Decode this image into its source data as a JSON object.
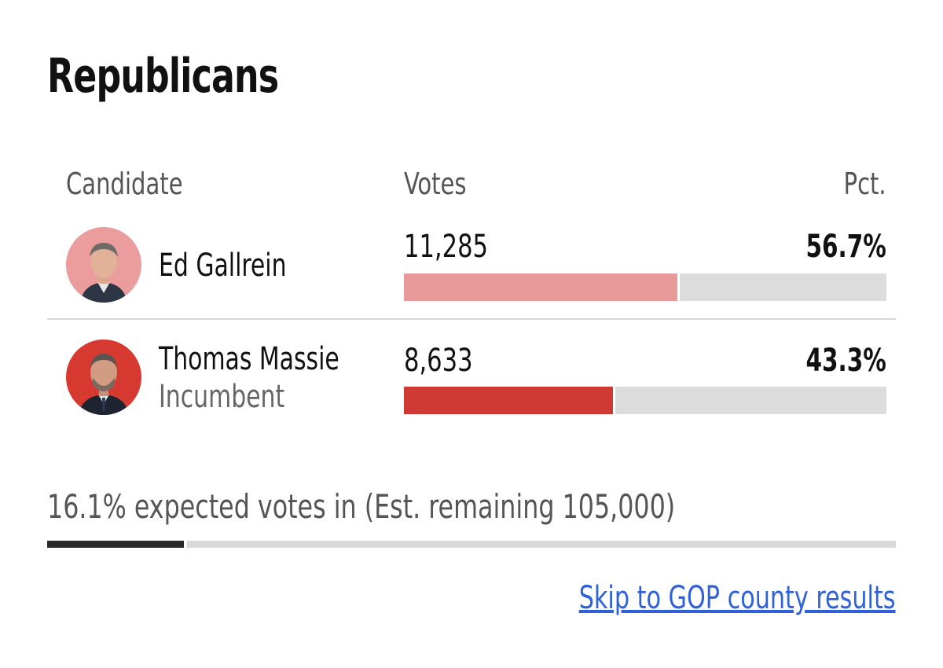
{
  "section": {
    "title": "Republicans"
  },
  "columns": {
    "candidate": "Candidate",
    "votes": "Votes",
    "pct": "Pct."
  },
  "candidates": [
    {
      "name": "Ed Gallrein",
      "subtitle": "",
      "votes": "11,285",
      "pct_label": "56.7%",
      "pct": 56.7,
      "bar_color": "#e89a9a",
      "avatar_bg": "#eb9c9c"
    },
    {
      "name": "Thomas Massie",
      "subtitle": "Incumbent",
      "votes": "8,633",
      "pct_label": "43.3%",
      "pct": 43.3,
      "bar_color": "#cf3a35",
      "avatar_bg": "#d6392f"
    }
  ],
  "expected": {
    "text": "16.1% expected votes in (Est. remaining 105,000)",
    "pct": 16.1
  },
  "link": {
    "label": "Skip to GOP county results"
  },
  "colors": {
    "link": "#2f62d8",
    "progress": "#2a2a2a",
    "track": "#dcdcdc"
  }
}
